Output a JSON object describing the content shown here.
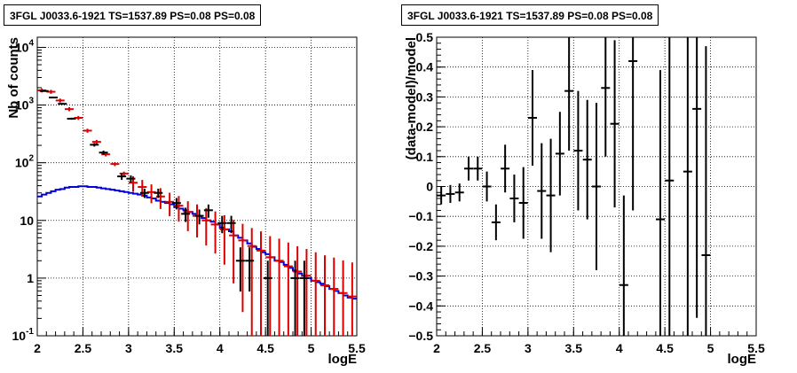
{
  "chart_data": [
    {
      "type": "line",
      "title": "3FGL J0033.6-1921 TS=1537.89 PS=0.08 PS=0.08",
      "xlabel": "logE",
      "ylabel": "Nb of counts",
      "xlim": [
        2,
        5.5
      ],
      "ylim": [
        0.1,
        15000
      ],
      "yscale": "log",
      "grid": true,
      "x_ticks": [
        "2",
        "2.5",
        "3",
        "3.5",
        "4",
        "4.5",
        "5",
        "5.5"
      ],
      "y_ticks": [
        "10^-1",
        "1",
        "10",
        "10^2",
        "10^3",
        "10^4"
      ],
      "series": [
        {
          "color": "#000000",
          "x": [
            2.025,
            2.125,
            2.225,
            2.325,
            2.425,
            2.525,
            2.625,
            2.725,
            2.825,
            2.925,
            3.025,
            3.125,
            3.225,
            3.325,
            3.425,
            3.525,
            3.625,
            3.725,
            3.825,
            3.925,
            4.025,
            4.125,
            4.225,
            4.325,
            4.425,
            4.525,
            4.625,
            4.725,
            4.825,
            4.925,
            5.025
          ],
          "y": [
            1750,
            1700,
            1050,
            610,
            290,
            190,
            150,
            60,
            56,
            30,
            30,
            20,
            12,
            7,
            6,
            17,
            13,
            4,
            2,
            2,
            1,
            1,
            1,
            1,
            1,
            1,
            1,
            1,
            1,
            1,
            1
          ],
          "points": [
            [
              2.075,
              1750
            ],
            [
              2.175,
              1350
            ],
            [
              2.275,
              1050
            ],
            [
              2.375,
              580
            ],
            [
              2.625,
              205
            ],
            [
              2.725,
              150
            ],
            [
              2.925,
              58
            ],
            [
              3.025,
              53
            ],
            [
              3.175,
              30
            ],
            [
              3.325,
              30
            ],
            [
              3.525,
              20
            ],
            [
              3.625,
              13
            ],
            [
              3.775,
              12
            ],
            [
              3.875,
              15
            ],
            [
              4.025,
              9
            ],
            [
              4.125,
              9
            ],
            [
              4.225,
              2
            ],
            [
              4.325,
              2
            ],
            [
              4.525,
              1
            ],
            [
              4.825,
              1
            ],
            [
              4.925,
              1
            ]
          ]
        },
        {
          "color": "#dd0000",
          "points": [
            [
              2.05,
              1800
            ],
            [
              2.15,
              1700
            ],
            [
              2.25,
              1200
            ],
            [
              2.35,
              850
            ],
            [
              2.45,
              600
            ],
            [
              2.55,
              360
            ],
            [
              2.65,
              230
            ],
            [
              2.75,
              140
            ],
            [
              2.85,
              95
            ],
            [
              2.95,
              65
            ],
            [
              3.05,
              45
            ],
            [
              3.15,
              38
            ],
            [
              3.25,
              31
            ],
            [
              3.35,
              26
            ],
            [
              3.45,
              21
            ],
            [
              3.55,
              18
            ],
            [
              3.65,
              14
            ],
            [
              3.75,
              12
            ],
            [
              3.85,
              10
            ],
            [
              3.95,
              8.5
            ],
            [
              4.05,
              7
            ],
            [
              4.15,
              5.5
            ],
            [
              4.25,
              4.5
            ],
            [
              4.35,
              3.6
            ],
            [
              4.45,
              3
            ],
            [
              4.55,
              2.3
            ],
            [
              4.65,
              2
            ],
            [
              4.75,
              1.6
            ],
            [
              4.85,
              1.3
            ],
            [
              4.95,
              1.1
            ],
            [
              5.05,
              0.9
            ],
            [
              5.15,
              0.75
            ],
            [
              5.25,
              0.65
            ],
            [
              5.35,
              0.55
            ],
            [
              5.45,
              0.48
            ]
          ]
        },
        {
          "color": "#0000dd",
          "x": [
            2,
            2.05,
            2.1,
            2.15,
            2.2,
            2.25,
            2.3,
            2.35,
            2.4,
            2.45,
            2.5,
            2.55,
            2.6,
            2.65,
            2.7,
            2.75,
            2.8,
            2.85,
            2.9,
            2.95,
            3,
            3.05,
            3.1,
            3.15,
            3.2,
            3.25,
            3.3,
            3.35,
            3.4,
            3.45,
            3.5,
            3.55,
            3.6,
            3.65,
            3.7,
            3.75,
            3.8,
            3.85,
            3.9,
            3.95,
            4,
            4.05,
            4.1,
            4.15,
            4.2,
            4.25,
            4.3,
            4.35,
            4.4,
            4.45,
            4.5,
            4.55,
            4.6,
            4.65,
            4.7,
            4.75,
            4.8,
            4.85,
            4.9,
            4.95,
            5,
            5.05,
            5.1,
            5.15,
            5.2,
            5.25,
            5.3,
            5.35,
            5.4,
            5.45,
            5.5
          ],
          "y": [
            26,
            28,
            30,
            32,
            34,
            35,
            37,
            38,
            38,
            39,
            39,
            38,
            38,
            37,
            36,
            35,
            34,
            33,
            32,
            31,
            30,
            29,
            28,
            27,
            25,
            24,
            22,
            21,
            20,
            19,
            17,
            16,
            15,
            14,
            13,
            12,
            11,
            10,
            9.5,
            8.5,
            7.5,
            7,
            6.5,
            5.5,
            5,
            4.5,
            4,
            3.5,
            3.2,
            2.8,
            2.6,
            2.3,
            2,
            1.9,
            1.7,
            1.5,
            1.35,
            1.2,
            1.1,
            1,
            0.9,
            0.85,
            0.8,
            0.72,
            0.65,
            0.6,
            0.55,
            0.5,
            0.46,
            0.44,
            0.43
          ]
        }
      ]
    },
    {
      "type": "scatter",
      "title": "3FGL J0033.6-1921 TS=1537.89 PS=0.08 PS=0.08",
      "xlabel": "logE",
      "ylabel": "(data-model)/model",
      "xlim": [
        2,
        5.5
      ],
      "ylim": [
        -0.5,
        0.5
      ],
      "grid": true,
      "x_ticks": [
        "2",
        "2.5",
        "3",
        "3.5",
        "4",
        "4.5",
        "5",
        "5.5"
      ],
      "y_ticks": [
        "−0.5",
        "−0.4",
        "−0.3",
        "−0.2",
        "−0.1",
        "0",
        "0.1",
        "0.2",
        "0.3",
        "0.4",
        "0.5"
      ],
      "series": [
        {
          "color": "#000000",
          "points": [
            {
              "x": 2.05,
              "y": -0.03,
              "err": 0.03
            },
            {
              "x": 2.15,
              "y": -0.025,
              "err": 0.03
            },
            {
              "x": 2.25,
              "y": -0.02,
              "err": 0.03
            },
            {
              "x": 2.35,
              "y": 0.06,
              "err": 0.04
            },
            {
              "x": 2.45,
              "y": 0.06,
              "err": 0.04
            },
            {
              "x": 2.55,
              "y": 0.0,
              "err": 0.05
            },
            {
              "x": 2.65,
              "y": -0.12,
              "err": 0.06
            },
            {
              "x": 2.75,
              "y": 0.06,
              "err": 0.08
            },
            {
              "x": 2.85,
              "y": -0.04,
              "err": 0.08
            },
            {
              "x": 2.95,
              "y": -0.055,
              "err": 0.12
            },
            {
              "x": 3.05,
              "y": 0.23,
              "err": 0.16
            },
            {
              "x": 3.15,
              "y": -0.015,
              "err": 0.16
            },
            {
              "x": 3.25,
              "y": -0.03,
              "err": 0.19
            },
            {
              "x": 3.35,
              "y": 0.11,
              "err": 0.14
            },
            {
              "x": 3.45,
              "y": 0.32,
              "err": 0.2
            },
            {
              "x": 3.55,
              "y": 0.12,
              "err": 0.2
            },
            {
              "x": 3.65,
              "y": 0.09,
              "err": 0.2
            },
            {
              "x": 3.75,
              "y": 0.0,
              "err": 0.28
            },
            {
              "x": 3.85,
              "y": 0.33,
              "err": 0.23
            },
            {
              "x": 3.95,
              "y": 0.21,
              "err": 0.28
            },
            {
              "x": 4.05,
              "y": -0.33,
              "err": 0.3
            },
            {
              "x": 4.15,
              "y": 0.42,
              "err": 0.5
            },
            {
              "x": 4.45,
              "y": -0.11,
              "err": 0.5
            },
            {
              "x": 4.55,
              "y": 0.02,
              "err": 0.6
            },
            {
              "x": 4.75,
              "y": 0.05,
              "err": 0.6
            },
            {
              "x": 4.85,
              "y": 0.26,
              "err": 0.7
            },
            {
              "x": 4.95,
              "y": -0.23,
              "err": 0.7
            }
          ]
        }
      ]
    }
  ]
}
